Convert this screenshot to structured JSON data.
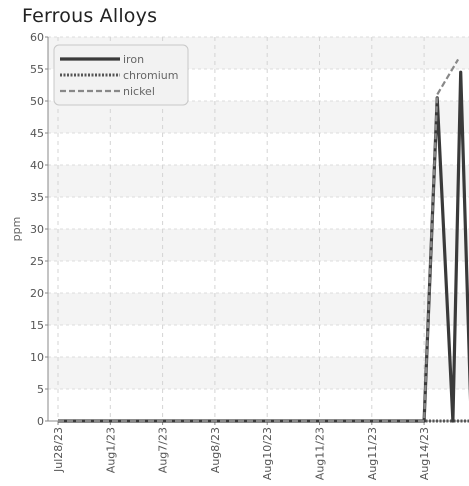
{
  "chart_data": {
    "type": "line",
    "title": "Ferrous Alloys",
    "ylabel": "ppm",
    "xlabel": "",
    "ylim": [
      0,
      60
    ],
    "y_ticks": [
      0,
      5,
      10,
      15,
      20,
      25,
      30,
      35,
      40,
      45,
      50,
      55,
      60
    ],
    "categories": [
      "Jul28/23",
      "Aug1/23",
      "Aug7/23",
      "Aug8/23",
      "Aug10/23",
      "Aug11/23",
      "Aug11/23",
      "Aug14/23"
    ],
    "grid": true,
    "legend_position": "top-left",
    "series": [
      {
        "name": "iron",
        "color": "#3a3a3a",
        "style": "solid",
        "points": [
          [
            0,
            0
          ],
          [
            1,
            0
          ],
          [
            2,
            0
          ],
          [
            3,
            0
          ],
          [
            4,
            0
          ],
          [
            5,
            0
          ],
          [
            6,
            0
          ],
          [
            6.7,
            0
          ],
          [
            7.0,
            0
          ],
          [
            7.25,
            50.5
          ],
          [
            7.55,
            0
          ],
          [
            7.7,
            54.5
          ],
          [
            7.9,
            0
          ]
        ]
      },
      {
        "name": "chromium",
        "color": "#555555",
        "style": "dotted",
        "points": [
          [
            0,
            0
          ],
          [
            1,
            0
          ],
          [
            2,
            0
          ],
          [
            3,
            0
          ],
          [
            4,
            0
          ],
          [
            5,
            0
          ],
          [
            6,
            0
          ],
          [
            7,
            0
          ],
          [
            7.9,
            0
          ]
        ]
      },
      {
        "name": "nickel",
        "color": "#888888",
        "style": "dashed",
        "points": [
          [
            0,
            0
          ],
          [
            1,
            0
          ],
          [
            2,
            0
          ],
          [
            3,
            0
          ],
          [
            4,
            0
          ],
          [
            5,
            0
          ],
          [
            6,
            0
          ],
          [
            7,
            0
          ],
          [
            7.25,
            51
          ],
          [
            7.65,
            56.5
          ]
        ]
      }
    ]
  }
}
